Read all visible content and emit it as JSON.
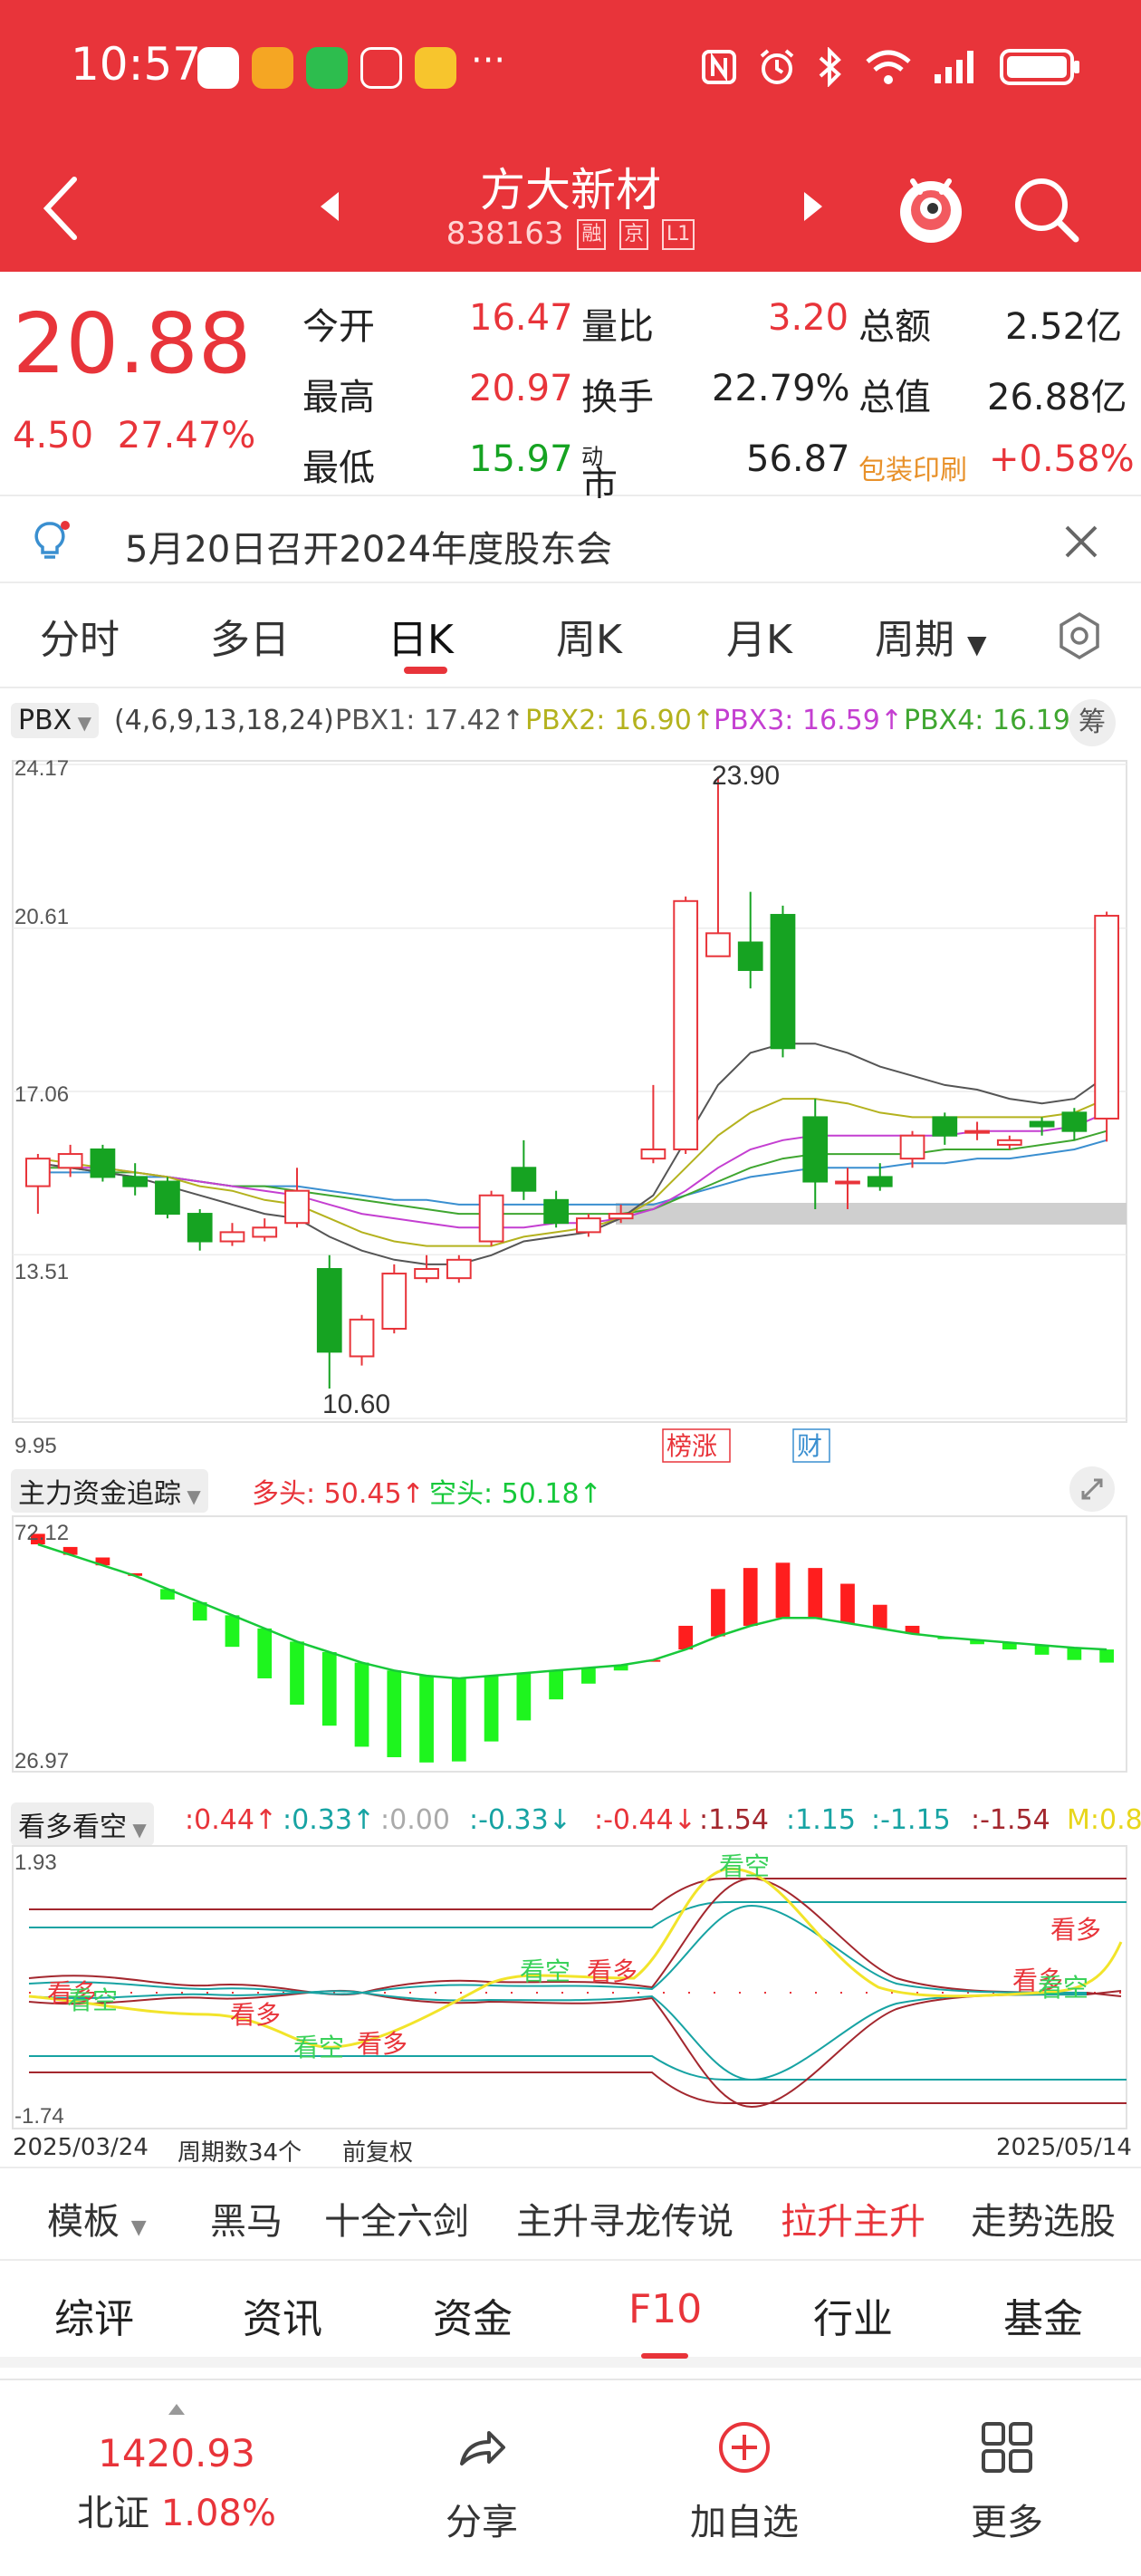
{
  "status": {
    "time": "10:57",
    "dots": "···",
    "app_colors": [
      "#ffffff",
      "#f5a623",
      "#2dbd4e",
      "#e8343a",
      "#f7c52d"
    ]
  },
  "header": {
    "name": "方大新材",
    "code": "838163",
    "tags": [
      "融",
      "京",
      "L1"
    ]
  },
  "quote": {
    "price": "20.88",
    "change": "4.50",
    "change_pct": "27.47%",
    "open_label": "今开",
    "open": "16.47",
    "high_label": "最高",
    "high": "20.97",
    "low_label": "最低",
    "low": "15.97",
    "vr_label": "量比",
    "vr": "3.20",
    "turnover_label": "换手",
    "turnover": "22.79%",
    "pe_label": "市盈",
    "pe_sup": "动",
    "pe": "56.87",
    "amount_label": "总额",
    "amount": "2.52亿",
    "mktcap_label": "总值",
    "mktcap": "26.88亿",
    "sector": "包装印刷",
    "sector_pct": "+0.58%"
  },
  "notice": {
    "text": "5月20日召开2024年度股东会"
  },
  "periods": [
    "分时",
    "多日",
    "日K",
    "周K",
    "月K",
    "周期"
  ],
  "active_period": "日K",
  "kline": {
    "indicator": "PBX",
    "params": "(4,6,9,13,18,24)",
    "pbx1": "PBX1: 17.42↑",
    "pbx2": "PBX2: 16.90↑",
    "pbx3": "PBX3: 16.59↑",
    "pbx4": "PBX4: 16.19",
    "chip_btn": "筹",
    "y_ticks": [
      "24.17",
      "20.61",
      "17.06",
      "13.51",
      "9.95"
    ],
    "high_mark": "23.90",
    "low_mark": "10.60",
    "tag_rank": "榜涨",
    "tag_fin": "财",
    "ymin": 9.95,
    "ymax": 24.17,
    "candles": [
      [
        15.0,
        15.6,
        14.4,
        15.7
      ],
      [
        15.4,
        15.7,
        15.2,
        15.9
      ],
      [
        15.8,
        15.2,
        15.1,
        15.9
      ],
      [
        15.2,
        15.0,
        14.8,
        15.5
      ],
      [
        15.1,
        14.4,
        14.3,
        15.2
      ],
      [
        14.4,
        13.8,
        13.6,
        14.5
      ],
      [
        13.8,
        14.0,
        13.7,
        14.2
      ],
      [
        13.9,
        14.1,
        13.8,
        14.3
      ],
      [
        14.2,
        14.9,
        14.1,
        15.4
      ],
      [
        13.2,
        11.4,
        10.6,
        13.5
      ],
      [
        11.3,
        12.1,
        11.1,
        12.2
      ],
      [
        11.9,
        13.1,
        11.8,
        13.3
      ],
      [
        13.0,
        13.2,
        12.9,
        13.5
      ],
      [
        13.0,
        13.4,
        12.9,
        13.5
      ],
      [
        13.8,
        14.8,
        13.7,
        14.9
      ],
      [
        15.4,
        14.9,
        14.7,
        16.0
      ],
      [
        14.7,
        14.2,
        14.1,
        14.9
      ],
      [
        14.0,
        14.3,
        13.9,
        14.4
      ],
      [
        14.3,
        14.4,
        14.2,
        14.6
      ],
      [
        15.6,
        15.8,
        15.5,
        17.2
      ],
      [
        15.8,
        21.2,
        15.7,
        21.3
      ],
      [
        20.0,
        20.5,
        20.0,
        23.9
      ],
      [
        20.3,
        19.7,
        19.3,
        21.4
      ],
      [
        20.9,
        18.0,
        17.8,
        21.1
      ],
      [
        16.5,
        15.1,
        14.5,
        16.9
      ],
      [
        15.1,
        15.1,
        14.5,
        15.4
      ],
      [
        15.2,
        15.0,
        14.9,
        15.5
      ],
      [
        15.6,
        16.1,
        15.4,
        16.2
      ],
      [
        16.5,
        16.1,
        15.9,
        16.6
      ],
      [
        16.2,
        16.2,
        16.0,
        16.4
      ],
      [
        15.9,
        16.0,
        15.8,
        16.1
      ],
      [
        16.4,
        16.3,
        16.1,
        16.5
      ],
      [
        16.6,
        16.2,
        16.0,
        16.7
      ],
      [
        16.47,
        20.88,
        15.97,
        20.97
      ]
    ],
    "ma1": [
      15.5,
      15.4,
      15.3,
      15.2,
      15.0,
      14.8,
      14.6,
      14.4,
      14.3,
      13.9,
      13.6,
      13.4,
      13.3,
      13.3,
      13.5,
      13.8,
      13.9,
      14.0,
      14.3,
      14.8,
      16.0,
      17.2,
      17.9,
      18.1,
      18.1,
      17.9,
      17.6,
      17.4,
      17.2,
      17.1,
      16.9,
      16.8,
      16.9,
      17.4
    ],
    "ma2": [
      15.6,
      15.5,
      15.4,
      15.3,
      15.2,
      15.0,
      14.9,
      14.7,
      14.6,
      14.3,
      14.0,
      13.8,
      13.7,
      13.7,
      13.7,
      13.9,
      14.0,
      14.1,
      14.3,
      14.7,
      15.4,
      16.1,
      16.6,
      16.9,
      16.9,
      16.8,
      16.6,
      16.5,
      16.5,
      16.5,
      16.5,
      16.5,
      16.6,
      16.9
    ],
    "ma3": [
      15.5,
      15.4,
      15.4,
      15.3,
      15.2,
      15.1,
      15.0,
      14.9,
      14.8,
      14.6,
      14.4,
      14.3,
      14.2,
      14.1,
      14.1,
      14.1,
      14.2,
      14.2,
      14.3,
      14.5,
      14.9,
      15.4,
      15.8,
      16.0,
      16.1,
      16.1,
      16.1,
      16.1,
      16.1,
      16.2,
      16.2,
      16.2,
      16.3,
      16.6
    ],
    "ma4": [
      15.4,
      15.4,
      15.3,
      15.3,
      15.2,
      15.1,
      15.0,
      15.0,
      14.9,
      14.8,
      14.7,
      14.6,
      14.5,
      14.4,
      14.4,
      14.4,
      14.4,
      14.4,
      14.4,
      14.5,
      14.8,
      15.1,
      15.4,
      15.6,
      15.7,
      15.7,
      15.7,
      15.7,
      15.8,
      15.8,
      15.8,
      15.9,
      16.0,
      16.2
    ],
    "ma5": [
      15.3,
      15.3,
      15.3,
      15.2,
      15.2,
      15.1,
      15.0,
      15.0,
      15.0,
      14.9,
      14.8,
      14.7,
      14.7,
      14.6,
      14.6,
      14.6,
      14.6,
      14.6,
      14.6,
      14.6,
      14.8,
      15.0,
      15.2,
      15.3,
      15.4,
      15.4,
      15.4,
      15.5,
      15.5,
      15.6,
      15.6,
      15.7,
      15.8,
      16.0
    ],
    "colors": {
      "up": "#e8343a",
      "down": "#16a322",
      "ma1": "#555555",
      "ma2": "#b4b21e",
      "ma3": "#c43fd1",
      "ma4": "#3fa630",
      "ma5": "#3a8fd0"
    }
  },
  "fund": {
    "title": "主力资金追踪",
    "long_label": "多头: 50.45↑",
    "short_label": "空头: 50.18↑",
    "ymax_label": "72.12",
    "ymin_label": "26.97",
    "ymin": 26.97,
    "ymax": 72.12,
    "values": [
      70.5,
      68.0,
      66.0,
      63.0,
      58.0,
      54.0,
      49.0,
      43.0,
      38.0,
      34.0,
      30.0,
      28.0,
      27.0,
      27.2,
      31.0,
      35.0,
      39.0,
      42.0,
      44.5,
      46.5,
      53.0,
      60.0,
      64.0,
      65.0,
      64.0,
      61.0,
      57.0,
      53.0,
      50.5,
      49.5,
      48.5,
      47.5,
      46.5,
      46.0
    ],
    "line": [
      68.5,
      66.5,
      64.5,
      62.5,
      60.0,
      57.5,
      55.0,
      52.5,
      50.0,
      48.0,
      46.0,
      44.5,
      43.5,
      43.0,
      43.5,
      44.0,
      44.5,
      45.0,
      45.5,
      46.5,
      48.5,
      51.0,
      53.0,
      54.5,
      54.5,
      53.5,
      52.5,
      51.5,
      50.8,
      50.3,
      49.8,
      49.3,
      48.8,
      48.5
    ]
  },
  "kdkk": {
    "title": "看多看空",
    "vals": [
      ":0.44↑",
      ":0.33↑",
      ":0.00",
      ":-0.33↓",
      ":-0.44↓",
      ":1.54",
      ":1.15",
      ":-1.15",
      ":-1.54",
      "M:0.8"
    ],
    "ymax_label": "1.93",
    "ymin_label": "-1.74",
    "signals": {
      "bull": "看多",
      "bear": "看空"
    }
  },
  "footer_axis": {
    "start": "2025/03/24",
    "count": "周期数34个",
    "adj": "前复权",
    "end": "2025/05/14"
  },
  "tools": [
    "模板",
    "黑马",
    "十全六剑",
    "主升寻龙传说",
    "拉升主升",
    "走势选股"
  ],
  "tabs": [
    "综评",
    "资讯",
    "资金",
    "F10",
    "行业",
    "基金"
  ],
  "active_tab": "F10",
  "bottom": {
    "index_value": "1420.93",
    "index_name": "北证",
    "index_pct": "1.08%",
    "share": "分享",
    "add": "加自选",
    "more": "更多"
  }
}
